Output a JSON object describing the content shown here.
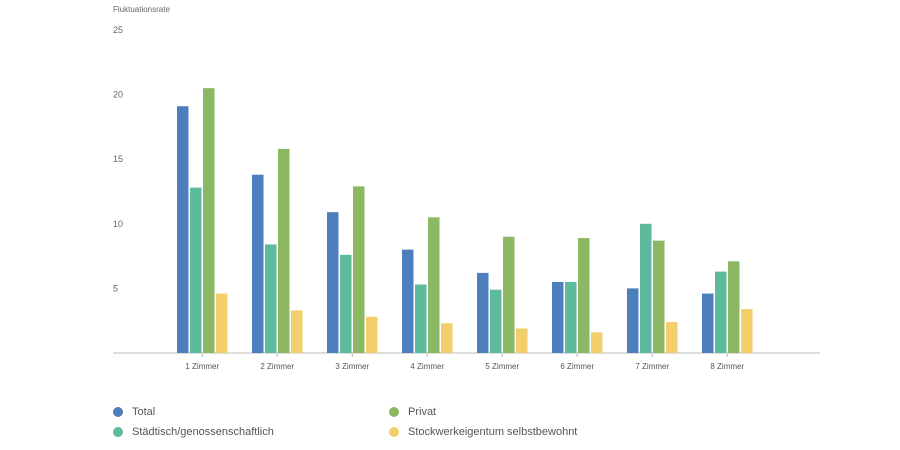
{
  "chart_data": {
    "type": "bar",
    "ylabel": "Fluktuationsrate",
    "ylim": [
      0,
      25
    ],
    "yticks": [
      5,
      10,
      15,
      20,
      25
    ],
    "grid": false,
    "legend_position": "bottom",
    "categories": [
      "1 Zimmer",
      "2 Zimmer",
      "3 Zimmer",
      "4 Zimmer",
      "5 Zimmer",
      "6 Zimmer",
      "7 Zimmer",
      "8 Zimmer"
    ],
    "series": [
      {
        "name": "Total",
        "color": "#4e7fbd",
        "values": [
          19.1,
          13.8,
          10.9,
          8.0,
          6.2,
          5.5,
          5.0,
          4.6
        ]
      },
      {
        "name": "Städtisch/genossenschaftlich",
        "color": "#5dba9d",
        "values": [
          12.8,
          8.4,
          7.6,
          5.3,
          4.9,
          5.5,
          10.0,
          6.3
        ]
      },
      {
        "name": "Privat",
        "color": "#8cb864",
        "values": [
          20.5,
          15.8,
          12.9,
          10.5,
          9.0,
          8.9,
          8.7,
          7.1
        ]
      },
      {
        "name": "Stockwerkeigentum selbstbewohnt",
        "color": "#f2cf6b",
        "values": [
          4.6,
          3.3,
          2.8,
          2.3,
          1.9,
          1.6,
          2.4,
          3.4
        ]
      }
    ]
  }
}
